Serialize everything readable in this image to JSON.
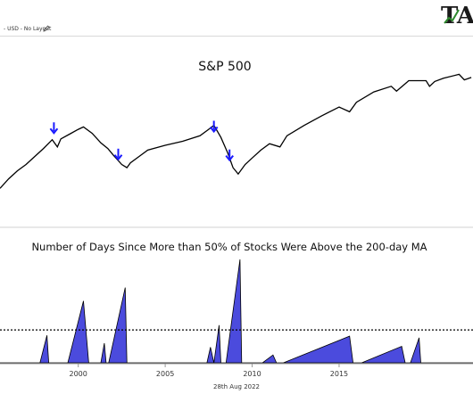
{
  "header": {
    "layout_label": "- USD - No Layout",
    "edit_icon": "pencil-icon",
    "logo_text": "TA",
    "logo_icon": "ta-logo-icon"
  },
  "footer": {
    "date": "28th Aug 2022"
  },
  "colors": {
    "price_line": "#000000",
    "marker": "#1a1aff",
    "area_fill": "#4b4bdd",
    "threshold": "#000000"
  },
  "chart_data": [
    {
      "type": "line",
      "title": "S&P 500",
      "series": [
        {
          "x": [
            1995.5,
            1996,
            1996.5,
            1997,
            1997.5,
            1998,
            1998.5,
            1998.8,
            1999,
            1999.5,
            2000,
            2000.3,
            2000.8,
            2001.3,
            2001.7,
            2002,
            2002.5,
            2002.8,
            2003,
            2003.5,
            2004,
            2005,
            2006,
            2007,
            2007.5,
            2007.8,
            2008.2,
            2008.6,
            2008.9,
            2009.2,
            2009.6,
            2010,
            2010.5,
            2011,
            2011.6,
            2012,
            2013,
            2014,
            2015,
            2015.6,
            2016,
            2017,
            2018,
            2018.3,
            2018.9,
            2019,
            2020,
            2020.2,
            2020.5,
            2021,
            2021.9,
            2022.2,
            2022.6
          ],
          "y": [
            22,
            34,
            44,
            52,
            62,
            72,
            83,
            74,
            84,
            90,
            96,
            99,
            91,
            79,
            72,
            64,
            52,
            48,
            54,
            62,
            70,
            76,
            81,
            88,
            96,
            101,
            86,
            66,
            48,
            40,
            52,
            60,
            70,
            78,
            74,
            88,
            101,
            113,
            124,
            118,
            130,
            143,
            150,
            144,
            155,
            157,
            157,
            150,
            156,
            160,
            165,
            158,
            161
          ]
        }
      ],
      "markers": [
        {
          "x": 1998.6,
          "y": 88
        },
        {
          "x": 2002.3,
          "y": 55
        },
        {
          "x": 2007.8,
          "y": 90
        },
        {
          "x": 2008.7,
          "y": 54
        }
      ],
      "xlim": [
        1995.5,
        2022.7
      ],
      "ylim": [
        0,
        190
      ]
    },
    {
      "type": "area",
      "title": "Number of Days Since More than 50% of Stocks Were Above the 200-day MA",
      "x_ticks": [
        "2000",
        "2005",
        "2010",
        "2015"
      ],
      "x_tick_values": [
        2000,
        2005,
        2010,
        2015
      ],
      "threshold": 42,
      "series": [
        {
          "x": [
            1995.5,
            1997.5,
            1997.8,
            1998.2,
            1998.3,
            1999.3,
            1999.4,
            2000.3,
            2000.6,
            2001.1,
            2001.3,
            2001.5,
            2001.6,
            2001.7,
            2001.75,
            2002.7,
            2002.8,
            2007.3,
            2007.4,
            2007.6,
            2007.8,
            2008.1,
            2008.2,
            2008.3,
            2008.5,
            2009.3,
            2009.4,
            2010.4,
            2010.6,
            2011.2,
            2011.4,
            2011.7,
            2011.8,
            2015.6,
            2015.8,
            2016.2,
            2016.3,
            2018.6,
            2018.8,
            2019.0,
            2019.1,
            2019.6,
            2019.7,
            2022.7
          ],
          "y": [
            0,
            0,
            0,
            35,
            0,
            0,
            0,
            79,
            0,
            0,
            0,
            25,
            0,
            0,
            0,
            96,
            0,
            0,
            0,
            20,
            0,
            48,
            0,
            0,
            0,
            132,
            0,
            0,
            0,
            10,
            0,
            0,
            0,
            34,
            0,
            0,
            0,
            21,
            0,
            0,
            0,
            32,
            0,
            0
          ]
        }
      ],
      "xlim": [
        1995.5,
        2022.7
      ],
      "ylim": [
        0,
        132
      ]
    }
  ]
}
